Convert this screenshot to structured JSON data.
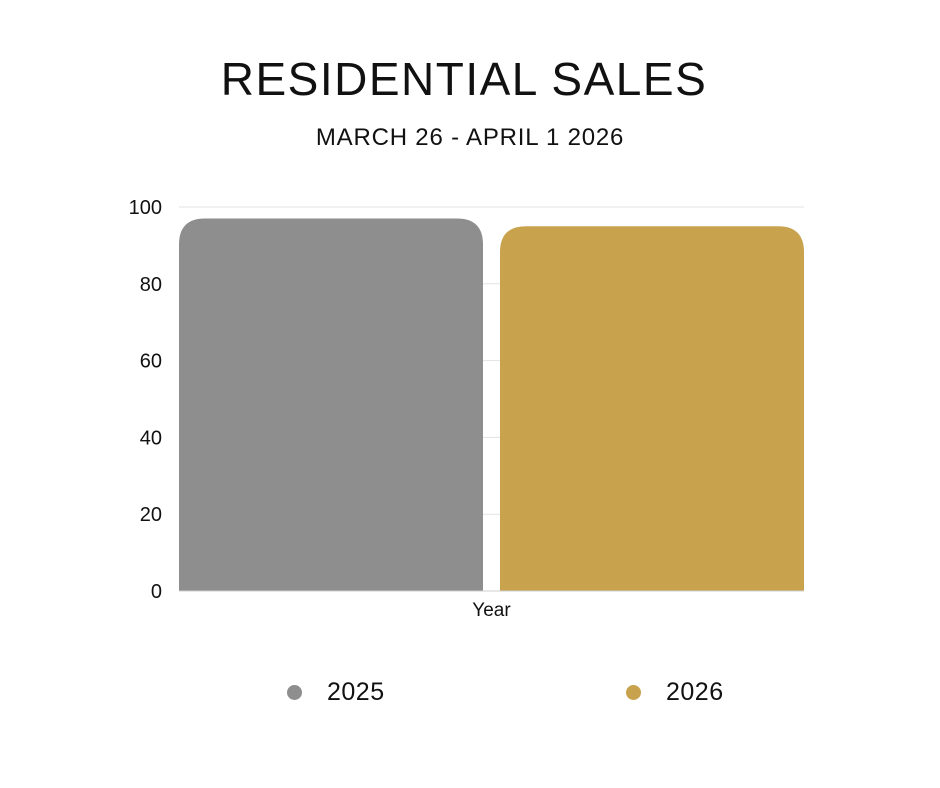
{
  "header": {
    "title": "RESIDENTIAL SALES",
    "subtitle": "MARCH 26 - APRIL 1 2026"
  },
  "chart_data": {
    "type": "bar",
    "title": "RESIDENTIAL SALES",
    "subtitle": "MARCH 26 - APRIL 1 2026",
    "xlabel": "Year",
    "ylabel": "",
    "categories": [
      "Year"
    ],
    "series": [
      {
        "name": "2025",
        "color": "#8e8e8e",
        "values": [
          97
        ]
      },
      {
        "name": "2026",
        "color": "#c8a24d",
        "values": [
          95
        ]
      }
    ],
    "ylim": [
      0,
      100
    ],
    "yticks": [
      0,
      20,
      40,
      60,
      80,
      100
    ],
    "grid": true,
    "legend_position": "bottom"
  }
}
